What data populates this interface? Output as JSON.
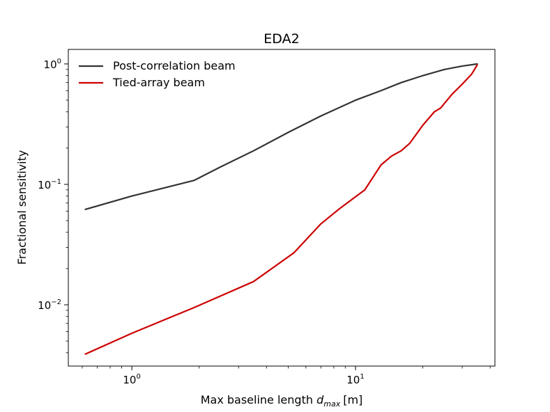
{
  "chart_data": {
    "type": "line",
    "title": "EDA2",
    "xlabel": "Max baseline length",
    "xlabel_symbol": "d",
    "xlabel_subscript": "max",
    "xlabel_unit": "[m]",
    "ylabel": "Fractional sensitivity",
    "xscale": "log",
    "yscale": "log",
    "xlim": [
      0.52,
      42
    ],
    "ylim": [
      0.0031,
      1.32
    ],
    "grid": false,
    "legend_position": "top-left",
    "x_ticks": [
      {
        "value": 1,
        "base": "10",
        "exp": "0"
      },
      {
        "value": 10,
        "base": "10",
        "exp": "1"
      }
    ],
    "y_ticks": [
      {
        "value": 0.01,
        "base": "10",
        "exp": "−2"
      },
      {
        "value": 0.1,
        "base": "10",
        "exp": "−1"
      },
      {
        "value": 1,
        "base": "10",
        "exp": "0"
      }
    ],
    "series": [
      {
        "name": "Post-correlation beam",
        "color": "#333333",
        "x": [
          0.62,
          1.0,
          1.9,
          2.5,
          3.5,
          5.0,
          7.0,
          10.0,
          13.0,
          16.0,
          20.0,
          25.0,
          30.0,
          35.0
        ],
        "y": [
          0.062,
          0.08,
          0.108,
          0.14,
          0.19,
          0.27,
          0.37,
          0.5,
          0.6,
          0.7,
          0.8,
          0.9,
          0.96,
          1.0
        ]
      },
      {
        "name": "Tied-array beam",
        "color": "#cc0000",
        "x": [
          0.62,
          1.0,
          1.9,
          3.5,
          5.3,
          7.0,
          8.5,
          11.0,
          13.0,
          14.5,
          16.0,
          17.5,
          20.0,
          22.5,
          24.0,
          27.0,
          30.0,
          33.0,
          35.0
        ],
        "y": [
          0.0039,
          0.0058,
          0.0095,
          0.0156,
          0.027,
          0.047,
          0.063,
          0.09,
          0.145,
          0.172,
          0.19,
          0.22,
          0.31,
          0.4,
          0.43,
          0.56,
          0.68,
          0.82,
          0.98
        ]
      }
    ]
  }
}
